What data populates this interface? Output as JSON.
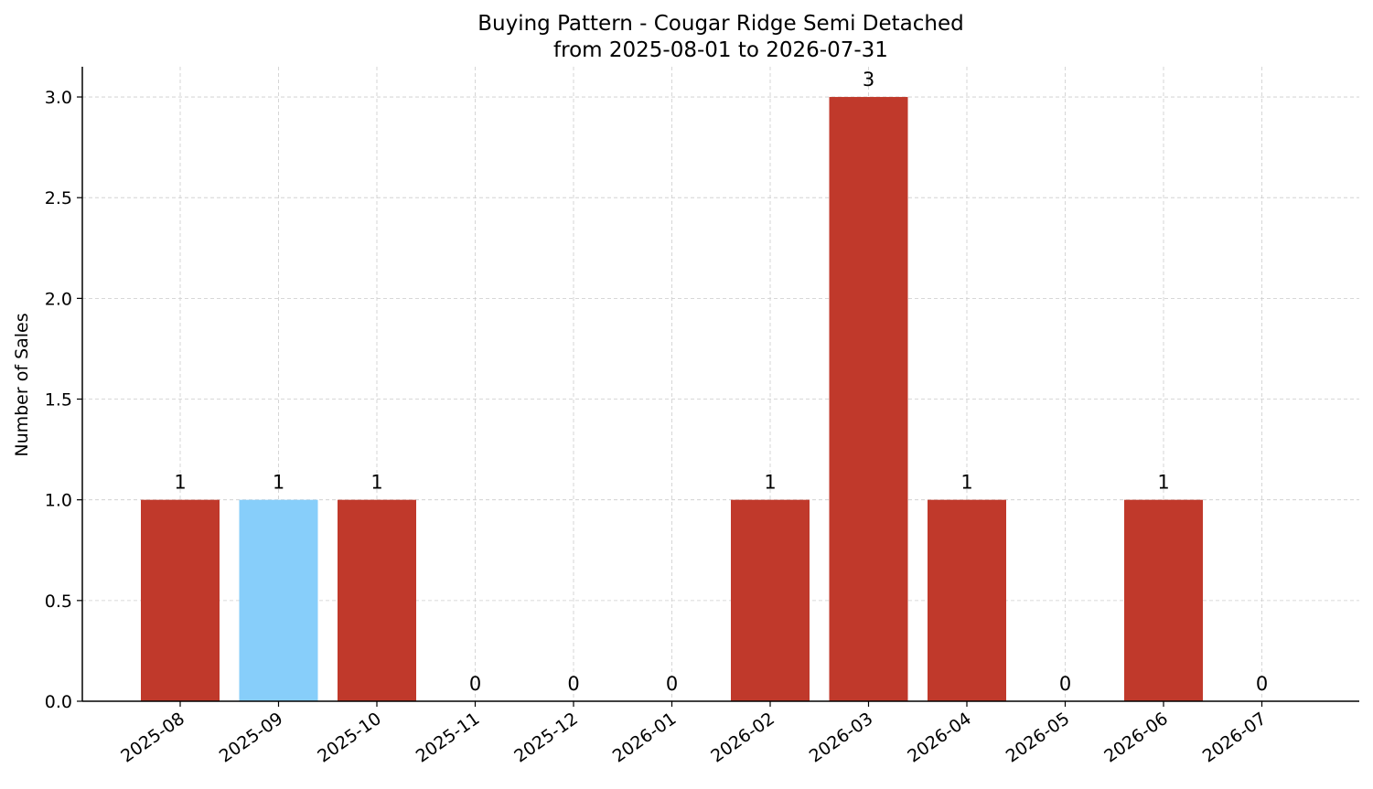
{
  "chart_data": {
    "type": "bar",
    "title": "Buying Pattern - Cougar Ridge Semi Detached",
    "subtitle": "from 2025-08-01 to 2026-07-31",
    "xlabel": "",
    "ylabel": "Number of Sales",
    "categories": [
      "2025-08",
      "2025-09",
      "2025-10",
      "2025-11",
      "2025-12",
      "2026-01",
      "2026-02",
      "2026-03",
      "2026-04",
      "2026-05",
      "2026-06",
      "2026-07"
    ],
    "values": [
      1,
      1,
      1,
      0,
      0,
      0,
      1,
      3,
      1,
      0,
      1,
      0
    ],
    "data_labels": [
      "1",
      "1",
      "1",
      "0",
      "0",
      "0",
      "1",
      "3",
      "1",
      "0",
      "1",
      "0"
    ],
    "bar_colors": [
      "#c0392b",
      "#87cefa",
      "#c0392b",
      "#c0392b",
      "#c0392b",
      "#c0392b",
      "#c0392b",
      "#c0392b",
      "#c0392b",
      "#c0392b",
      "#c0392b",
      "#c0392b"
    ],
    "y_ticks": [
      0.0,
      0.5,
      1.0,
      1.5,
      2.0,
      2.5,
      3.0
    ],
    "y_tick_labels": [
      "0.0",
      "0.5",
      "1.0",
      "1.5",
      "2.0",
      "2.5",
      "3.0"
    ],
    "ylim": [
      0,
      3.15
    ],
    "grid": true,
    "grid_color": "#cccccc",
    "legend": "none"
  }
}
